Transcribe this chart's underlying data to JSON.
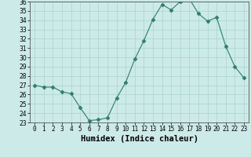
{
  "x": [
    0,
    1,
    2,
    3,
    4,
    5,
    6,
    7,
    8,
    9,
    10,
    11,
    12,
    13,
    14,
    15,
    16,
    17,
    18,
    19,
    20,
    21,
    22,
    23
  ],
  "y": [
    27.0,
    26.8,
    26.8,
    26.3,
    26.1,
    24.6,
    23.2,
    23.3,
    23.5,
    25.6,
    27.3,
    29.8,
    31.8,
    34.1,
    35.7,
    35.1,
    36.0,
    36.3,
    34.7,
    33.9,
    34.3,
    31.2,
    29.0,
    27.8
  ],
  "line_color": "#2e7d6e",
  "marker": "D",
  "marker_size": 2.5,
  "bg_color": "#cceae7",
  "grid_color": "#aad4d0",
  "xlabel": "Humidex (Indice chaleur)",
  "ylim": [
    23,
    36
  ],
  "xlim": [
    -0.5,
    23.5
  ],
  "yticks": [
    23,
    24,
    25,
    26,
    27,
    28,
    29,
    30,
    31,
    32,
    33,
    34,
    35,
    36
  ],
  "xticks": [
    0,
    1,
    2,
    3,
    4,
    5,
    6,
    7,
    8,
    9,
    10,
    11,
    12,
    13,
    14,
    15,
    16,
    17,
    18,
    19,
    20,
    21,
    22,
    23
  ],
  "xtick_labels": [
    "0",
    "1",
    "2",
    "3",
    "4",
    "5",
    "6",
    "7",
    "8",
    "9",
    "10",
    "11",
    "12",
    "13",
    "14",
    "15",
    "16",
    "17",
    "18",
    "19",
    "20",
    "21",
    "22",
    "23"
  ],
  "tick_fontsize": 5.5,
  "xlabel_fontsize": 7.5
}
